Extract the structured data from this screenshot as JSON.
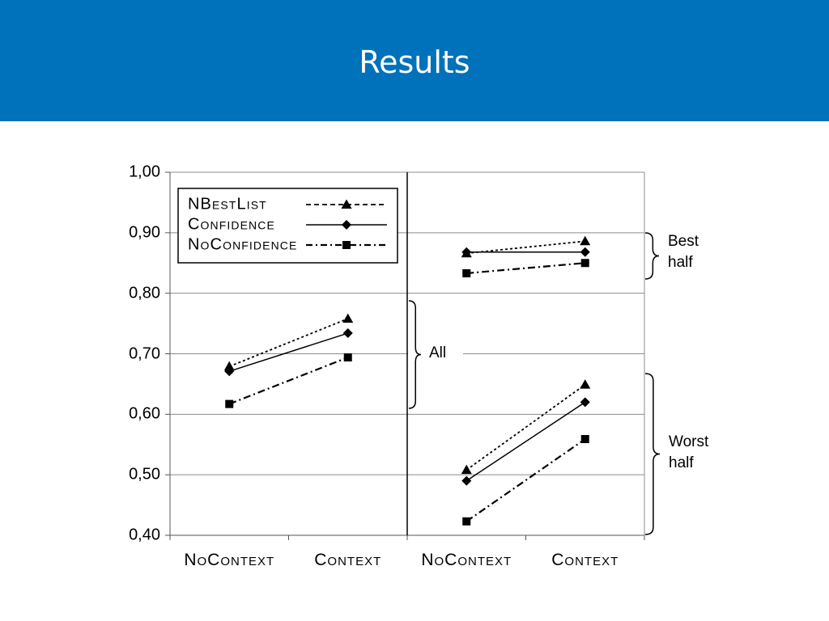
{
  "header": {
    "title": "Results"
  },
  "chart_data": {
    "type": "line",
    "ylim": [
      0.4,
      1.0
    ],
    "y_tick_labels": [
      "0,40",
      "0,50",
      "0,60",
      "0,70",
      "0,80",
      "0,90",
      "1,00"
    ],
    "grid": true,
    "legend_placement": "top-left",
    "series": [
      {
        "name": "NBestList",
        "marker": "triangle",
        "line_style": "dotted"
      },
      {
        "name": "Confidence",
        "marker": "diamond",
        "line_style": "solid"
      },
      {
        "name": "NoConfidence",
        "marker": "square",
        "line_style": "dash-dot"
      }
    ],
    "panels": [
      {
        "categories": [
          "NoContext",
          "Context"
        ],
        "groups": [
          {
            "label": "All",
            "values": {
              "NBestList": [
                0.679,
                0.758
              ],
              "Confidence": [
                0.671,
                0.734
              ],
              "NoConfidence": [
                0.617,
                0.694
              ]
            }
          }
        ]
      },
      {
        "categories": [
          "NoContext",
          "Context"
        ],
        "groups": [
          {
            "label": "Best half",
            "values": {
              "NBestList": [
                0.866,
                0.886
              ],
              "Confidence": [
                0.868,
                0.868
              ],
              "NoConfidence": [
                0.833,
                0.85
              ]
            }
          },
          {
            "label": "Worst half",
            "values": {
              "NBestList": [
                0.508,
                0.649
              ],
              "Confidence": [
                0.49,
                0.62
              ],
              "NoConfidence": [
                0.423,
                0.559
              ]
            }
          }
        ]
      }
    ]
  }
}
